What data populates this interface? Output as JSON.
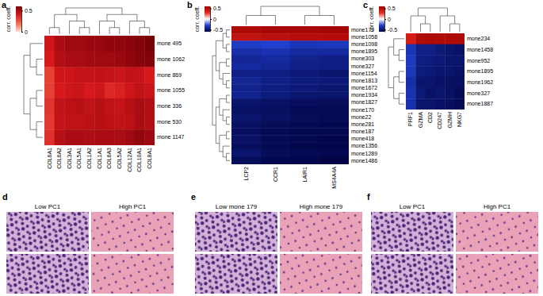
{
  "chart_data": [
    {
      "type": "heatmap",
      "title": "a",
      "x": [
        "COL6A1",
        "COL6A2",
        "COL3A1",
        "COL5A1",
        "COL1A2",
        "COL1A1",
        "COL6A3",
        "COL5A2",
        "COL12A1",
        "COL10A1",
        "COL8A1"
      ],
      "y": [
        "mone 495",
        "mone 1062",
        "mone 869",
        "mone 1055",
        "mone 336",
        "mone 530",
        "mone 1147"
      ],
      "values": [
        [
          0.42,
          0.5,
          0.52,
          0.52,
          0.53,
          0.54,
          0.55,
          0.55,
          0.56,
          0.58,
          0.6
        ],
        [
          0.4,
          0.48,
          0.5,
          0.5,
          0.51,
          0.52,
          0.52,
          0.53,
          0.55,
          0.57,
          0.58
        ],
        [
          0.3,
          0.42,
          0.42,
          0.44,
          0.44,
          0.45,
          0.44,
          0.43,
          0.45,
          0.44,
          0.4
        ],
        [
          0.3,
          0.4,
          0.42,
          0.43,
          0.4,
          0.42,
          0.36,
          0.38,
          0.42,
          0.45,
          0.43
        ],
        [
          0.33,
          0.45,
          0.46,
          0.47,
          0.45,
          0.47,
          0.45,
          0.44,
          0.47,
          0.5,
          0.48
        ],
        [
          0.32,
          0.44,
          0.45,
          0.45,
          0.46,
          0.47,
          0.46,
          0.45,
          0.46,
          0.5,
          0.48
        ],
        [
          0.34,
          0.47,
          0.5,
          0.5,
          0.49,
          0.5,
          0.5,
          0.5,
          0.52,
          0.55,
          0.53
        ]
      ],
      "colors": [
        "#fde0d2",
        "#f26a4f",
        "#d7191c",
        "#7a0008"
      ],
      "colorbar": {
        "label": "corr. coeff.",
        "range": [
          0,
          0.6
        ],
        "ticks": [
          0.5,
          0
        ]
      }
    },
    {
      "type": "heatmap",
      "title": "b",
      "x": [
        "LCP2",
        "CCR1",
        "LAIR1",
        "MS4A4A"
      ],
      "y": [
        "mone179",
        "mone1058",
        "mone1098",
        "mone1895",
        "mone303",
        "mone327",
        "mone1154",
        "mone1813",
        "mone1672",
        "mone1934",
        "mone1827",
        "mone170",
        "mone22",
        "mone281",
        "mone187",
        "mone418",
        "mone1356",
        "mone1289",
        "mone1486"
      ],
      "values": [
        [
          0.52,
          0.55,
          0.55,
          0.56
        ],
        [
          0.45,
          0.48,
          0.5,
          0.5
        ],
        [
          -0.32,
          -0.3,
          -0.35,
          -0.34
        ],
        [
          -0.38,
          -0.36,
          -0.4,
          -0.4
        ],
        [
          -0.42,
          -0.4,
          -0.44,
          -0.45
        ],
        [
          -0.4,
          -0.42,
          -0.45,
          -0.46
        ],
        [
          -0.45,
          -0.46,
          -0.48,
          -0.5
        ],
        [
          -0.42,
          -0.45,
          -0.47,
          -0.48
        ],
        [
          -0.44,
          -0.46,
          -0.48,
          -0.5
        ],
        [
          -0.43,
          -0.47,
          -0.5,
          -0.5
        ],
        [
          -0.5,
          -0.52,
          -0.53,
          -0.54
        ],
        [
          -0.52,
          -0.53,
          -0.55,
          -0.55
        ],
        [
          -0.5,
          -0.52,
          -0.54,
          -0.55
        ],
        [
          -0.52,
          -0.54,
          -0.55,
          -0.56
        ],
        [
          -0.53,
          -0.55,
          -0.56,
          -0.56
        ],
        [
          -0.52,
          -0.55,
          -0.56,
          -0.57
        ],
        [
          -0.53,
          -0.55,
          -0.57,
          -0.57
        ],
        [
          -0.5,
          -0.54,
          -0.55,
          -0.56
        ],
        [
          -0.54,
          -0.56,
          -0.57,
          -0.58
        ]
      ],
      "colors": [
        "#00003c",
        "#1f3fcf",
        "#ffffff",
        "#e8281c",
        "#9a0000"
      ],
      "colorbar": {
        "label": "corr. coeff.",
        "range": [
          -0.6,
          0.6
        ],
        "ticks": [
          0.5,
          0,
          -0.5
        ]
      }
    },
    {
      "type": "heatmap",
      "title": "c",
      "x": [
        "PRF1",
        "GZMA",
        "CD2",
        "CD247",
        "GZMH",
        "NKG7"
      ],
      "y": [
        "mone234",
        "mone1458",
        "mone952",
        "mone1895",
        "mone1962",
        "mone327",
        "mone1887"
      ],
      "values": [
        [
          0.38,
          0.52,
          0.53,
          0.52,
          0.53,
          0.52
        ],
        [
          -0.35,
          -0.45,
          -0.45,
          -0.48,
          -0.5,
          -0.52
        ],
        [
          -0.33,
          -0.46,
          -0.47,
          -0.48,
          -0.5,
          -0.5
        ],
        [
          -0.34,
          -0.47,
          -0.48,
          -0.5,
          -0.5,
          -0.52
        ],
        [
          -0.38,
          -0.5,
          -0.5,
          -0.52,
          -0.53,
          -0.53
        ],
        [
          -0.36,
          -0.48,
          -0.52,
          -0.5,
          -0.52,
          -0.55
        ],
        [
          -0.37,
          -0.5,
          -0.5,
          -0.52,
          -0.53,
          -0.55
        ]
      ],
      "colors": [
        "#00003c",
        "#1f3fcf",
        "#ffffff",
        "#e8281c",
        "#9a0000"
      ],
      "colorbar": {
        "label": "corr. coeff.",
        "range": [
          -0.6,
          0.6
        ],
        "ticks": [
          0.5,
          0,
          -0.5
        ]
      }
    }
  ],
  "image_panels": [
    {
      "label": "d",
      "titles": [
        "Low PC1",
        "High PC1"
      ]
    },
    {
      "label": "e",
      "titles": [
        "Low mone 179",
        "High mone 179"
      ]
    },
    {
      "label": "f",
      "titles": [
        "Low PC1",
        "High PC1"
      ]
    }
  ]
}
